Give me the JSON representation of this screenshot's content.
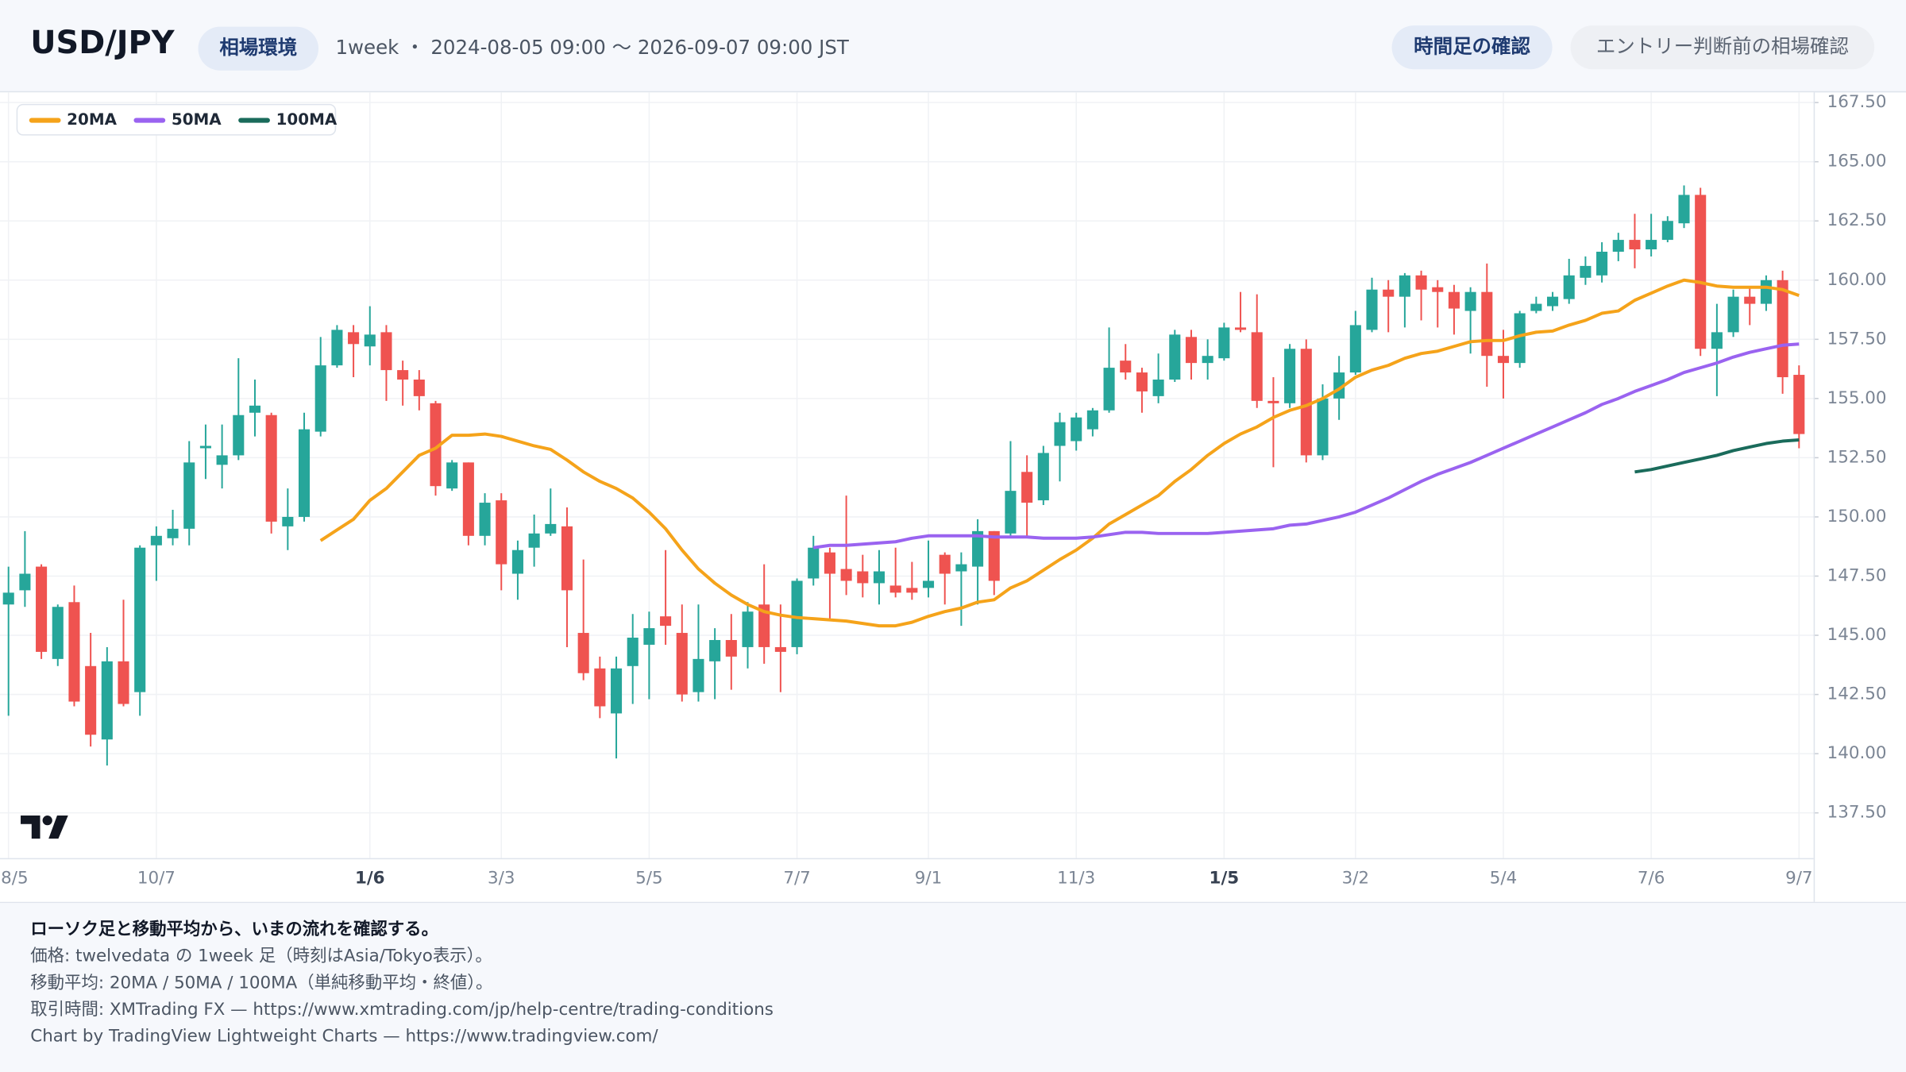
{
  "header": {
    "title": "USD/JPY",
    "tag": "相場環境",
    "subtitle": "1week ・ 2024-08-05 09:00 〜 2026-09-07 09:00 JST",
    "buttons": [
      "時間足の確認",
      "エントリー判断前の相場確認"
    ]
  },
  "chart_data": {
    "type": "candlestick",
    "categories": [
      "8/5",
      null,
      null,
      null,
      null,
      null,
      null,
      null,
      null,
      "10/7",
      null,
      null,
      null,
      null,
      null,
      null,
      null,
      null,
      null,
      null,
      null,
      null,
      "1/6",
      null,
      null,
      null,
      null,
      null,
      null,
      null,
      "3/3",
      null,
      null,
      null,
      null,
      null,
      null,
      null,
      null,
      "5/5",
      null,
      null,
      null,
      null,
      null,
      null,
      null,
      null,
      "7/7",
      null,
      null,
      null,
      null,
      null,
      null,
      null,
      "9/1",
      null,
      null,
      null,
      null,
      null,
      null,
      null,
      null,
      "11/3",
      null,
      null,
      null,
      null,
      null,
      null,
      null,
      null,
      "1/5",
      null,
      null,
      null,
      null,
      null,
      null,
      null,
      "3/2",
      null,
      null,
      null,
      null,
      null,
      null,
      null,
      null,
      "5/4",
      null,
      null,
      null,
      null,
      null,
      null,
      null,
      null,
      "7/6",
      null,
      null,
      null,
      null,
      null,
      null,
      null,
      null,
      "9/7"
    ],
    "open": [
      146.3,
      146.9,
      147.9,
      144.0,
      146.4,
      143.7,
      140.6,
      143.9,
      142.6,
      148.8,
      149.1,
      149.5,
      152.9,
      152.2,
      152.6,
      154.4,
      154.3,
      149.6,
      150.0,
      153.6,
      156.4,
      157.8,
      157.2,
      157.8,
      156.2,
      155.8,
      154.8,
      151.2,
      152.3,
      149.2,
      150.7,
      147.6,
      148.7,
      149.3,
      149.6,
      145.1,
      143.6,
      141.7,
      143.7,
      144.6,
      145.8,
      145.1,
      142.6,
      143.9,
      144.8,
      144.5,
      146.3,
      144.5,
      144.5,
      147.4,
      148.5,
      147.8,
      147.7,
      147.2,
      147.1,
      147.0,
      147.0,
      148.4,
      147.7,
      147.9,
      149.4,
      149.3,
      151.9,
      150.7,
      153.0,
      153.2,
      153.7,
      154.5,
      156.6,
      156.1,
      155.1,
      155.8,
      157.6,
      156.5,
      156.7,
      158.0,
      157.8,
      154.9,
      154.8,
      157.1,
      152.6,
      155.0,
      156.1,
      157.9,
      159.6,
      159.3,
      160.2,
      159.7,
      159.5,
      158.7,
      159.5,
      156.8,
      156.5,
      158.7,
      158.9,
      159.2,
      160.1,
      160.2,
      161.2,
      161.7,
      161.3,
      161.7,
      162.4,
      163.6,
      157.1,
      157.8,
      159.3,
      159.0,
      160.0,
      156.0
    ],
    "high": [
      147.9,
      149.4,
      148.0,
      146.3,
      147.1,
      145.1,
      144.5,
      146.5,
      148.8,
      149.6,
      150.3,
      153.2,
      153.9,
      153.9,
      156.7,
      155.8,
      154.4,
      151.2,
      154.4,
      157.6,
      158.1,
      158.1,
      158.9,
      158.1,
      156.6,
      156.2,
      154.9,
      152.4,
      152.3,
      151.0,
      151.0,
      149.0,
      150.1,
      151.2,
      150.4,
      148.2,
      144.1,
      144.1,
      145.9,
      146.0,
      148.6,
      146.3,
      146.3,
      145.3,
      145.9,
      146.4,
      148.0,
      146.3,
      147.4,
      149.2,
      148.7,
      150.9,
      148.4,
      148.6,
      148.7,
      148.1,
      149.0,
      148.5,
      148.5,
      149.9,
      149.4,
      153.2,
      152.6,
      153.0,
      154.4,
      154.4,
      154.6,
      158.0,
      157.3,
      156.3,
      156.9,
      157.9,
      157.9,
      157.5,
      158.2,
      159.5,
      159.4,
      155.9,
      157.3,
      157.5,
      155.6,
      156.8,
      158.7,
      160.1,
      160.0,
      160.3,
      160.4,
      160.0,
      159.8,
      159.7,
      160.7,
      157.9,
      158.7,
      159.3,
      159.5,
      160.9,
      161.0,
      161.6,
      162.0,
      162.8,
      162.8,
      162.7,
      164.0,
      163.9,
      159.0,
      159.6,
      159.7,
      160.2,
      160.4,
      156.4
    ],
    "low": [
      141.6,
      146.2,
      144.0,
      143.7,
      142.0,
      140.3,
      139.5,
      142.0,
      141.6,
      147.3,
      148.8,
      148.8,
      151.6,
      151.2,
      152.4,
      153.4,
      149.3,
      148.6,
      149.8,
      153.4,
      156.3,
      155.9,
      156.4,
      154.9,
      154.7,
      154.5,
      150.9,
      151.1,
      148.8,
      148.8,
      146.9,
      146.5,
      147.9,
      149.2,
      144.5,
      143.1,
      141.5,
      139.8,
      142.1,
      142.3,
      144.6,
      142.2,
      142.2,
      142.3,
      142.7,
      143.6,
      143.8,
      142.6,
      144.2,
      147.1,
      145.6,
      146.7,
      146.6,
      146.3,
      146.6,
      146.5,
      146.6,
      146.3,
      145.4,
      146.3,
      146.7,
      149.1,
      149.2,
      150.5,
      151.5,
      152.8,
      153.4,
      154.4,
      155.8,
      154.4,
      154.8,
      155.7,
      155.8,
      155.8,
      156.6,
      157.8,
      154.6,
      152.1,
      154.6,
      152.3,
      152.4,
      154.1,
      156.0,
      157.8,
      157.8,
      158.0,
      158.3,
      158.0,
      157.7,
      156.9,
      155.5,
      155.0,
      156.3,
      158.6,
      158.7,
      159.0,
      159.8,
      159.9,
      160.8,
      160.5,
      161.0,
      161.6,
      162.2,
      156.8,
      155.1,
      157.6,
      158.1,
      158.7,
      155.2,
      152.9
    ],
    "close": [
      146.8,
      147.6,
      144.3,
      146.2,
      142.2,
      140.8,
      143.9,
      142.1,
      148.7,
      149.2,
      149.5,
      152.3,
      153.0,
      152.6,
      154.3,
      154.7,
      149.8,
      150.0,
      153.7,
      156.4,
      157.9,
      157.3,
      157.7,
      156.2,
      155.8,
      155.1,
      151.3,
      152.3,
      149.2,
      150.6,
      148.0,
      148.6,
      149.3,
      149.7,
      146.9,
      143.4,
      142.0,
      143.6,
      144.9,
      145.3,
      145.4,
      142.5,
      144.0,
      144.8,
      144.1,
      146.0,
      144.5,
      144.3,
      147.3,
      148.7,
      147.6,
      147.3,
      147.2,
      147.7,
      146.8,
      146.8,
      147.3,
      147.6,
      148.0,
      149.4,
      147.3,
      151.1,
      150.6,
      152.7,
      154.0,
      154.2,
      154.5,
      156.3,
      156.1,
      155.3,
      155.8,
      157.7,
      156.5,
      156.8,
      158.0,
      157.9,
      154.9,
      154.8,
      157.1,
      152.6,
      155.0,
      156.1,
      158.1,
      159.6,
      159.3,
      160.2,
      159.6,
      159.5,
      158.8,
      159.5,
      156.8,
      156.5,
      158.6,
      159.0,
      159.3,
      160.2,
      160.6,
      161.2,
      161.7,
      161.3,
      161.7,
      162.5,
      163.6,
      157.1,
      157.8,
      159.3,
      159.0,
      160.0,
      155.9,
      153.5
    ],
    "up_color": "#26a69a",
    "down_color": "#ef5350",
    "series": [
      {
        "name": "20MA",
        "color": "#f5a31a",
        "values": [
          null,
          null,
          null,
          null,
          null,
          null,
          null,
          null,
          null,
          null,
          null,
          null,
          null,
          null,
          null,
          null,
          null,
          null,
          null,
          149.0,
          149.45,
          149.9,
          150.7,
          151.2,
          151.9,
          152.6,
          152.9,
          153.45,
          153.45,
          153.5,
          153.4,
          153.2,
          153.0,
          152.85,
          152.4,
          151.9,
          151.5,
          151.2,
          150.8,
          150.2,
          149.5,
          148.6,
          147.8,
          147.2,
          146.7,
          146.3,
          146.0,
          145.85,
          145.75,
          145.7,
          145.65,
          145.6,
          145.5,
          145.4,
          145.4,
          145.55,
          145.8,
          146.0,
          146.15,
          146.4,
          146.5,
          147.0,
          147.3,
          147.75,
          148.2,
          148.6,
          149.1,
          149.7,
          150.1,
          150.5,
          150.9,
          151.5,
          152.0,
          152.6,
          153.1,
          153.5,
          153.8,
          154.2,
          154.5,
          154.7,
          155.0,
          155.4,
          155.9,
          156.2,
          156.4,
          156.7,
          156.9,
          157.0,
          157.2,
          157.4,
          157.45,
          157.45,
          157.65,
          157.8,
          157.85,
          158.1,
          158.3,
          158.6,
          158.7,
          159.15,
          159.45,
          159.75,
          160.0,
          159.9,
          159.75,
          159.7,
          159.7,
          159.7,
          159.6,
          159.35
        ]
      },
      {
        "name": "50MA",
        "color": "#9a63f0",
        "values": [
          null,
          null,
          null,
          null,
          null,
          null,
          null,
          null,
          null,
          null,
          null,
          null,
          null,
          null,
          null,
          null,
          null,
          null,
          null,
          null,
          null,
          null,
          null,
          null,
          null,
          null,
          null,
          null,
          null,
          null,
          null,
          null,
          null,
          null,
          null,
          null,
          null,
          null,
          null,
          null,
          null,
          null,
          null,
          null,
          null,
          null,
          null,
          null,
          null,
          148.7,
          148.8,
          148.8,
          148.85,
          148.9,
          148.95,
          149.1,
          149.2,
          149.2,
          149.2,
          149.2,
          149.15,
          149.15,
          149.15,
          149.1,
          149.1,
          149.1,
          149.15,
          149.25,
          149.35,
          149.35,
          149.3,
          149.3,
          149.3,
          149.3,
          149.35,
          149.4,
          149.45,
          149.5,
          149.65,
          149.7,
          149.85,
          150.0,
          150.2,
          150.5,
          150.8,
          151.15,
          151.5,
          151.8,
          152.05,
          152.3,
          152.6,
          152.9,
          153.2,
          153.5,
          153.8,
          154.1,
          154.4,
          154.75,
          155.0,
          155.3,
          155.55,
          155.8,
          156.1,
          156.3,
          156.5,
          156.75,
          156.95,
          157.1,
          157.25,
          157.3
        ]
      },
      {
        "name": "100MA",
        "color": "#1a6b5b",
        "values": [
          null,
          null,
          null,
          null,
          null,
          null,
          null,
          null,
          null,
          null,
          null,
          null,
          null,
          null,
          null,
          null,
          null,
          null,
          null,
          null,
          null,
          null,
          null,
          null,
          null,
          null,
          null,
          null,
          null,
          null,
          null,
          null,
          null,
          null,
          null,
          null,
          null,
          null,
          null,
          null,
          null,
          null,
          null,
          null,
          null,
          null,
          null,
          null,
          null,
          null,
          null,
          null,
          null,
          null,
          null,
          null,
          null,
          null,
          null,
          null,
          null,
          null,
          null,
          null,
          null,
          null,
          null,
          null,
          null,
          null,
          null,
          null,
          null,
          null,
          null,
          null,
          null,
          null,
          null,
          null,
          null,
          null,
          null,
          null,
          null,
          null,
          null,
          null,
          null,
          null,
          null,
          null,
          null,
          null,
          null,
          null,
          null,
          null,
          null,
          151.9,
          152.0,
          152.15,
          152.3,
          152.45,
          152.6,
          152.8,
          152.95,
          153.1,
          153.2,
          153.25
        ]
      }
    ],
    "ylim": [
      135.59,
      167.93
    ],
    "yticks": [
      {
        "value": 137.5,
        "label": "137.50"
      },
      {
        "value": 140,
        "label": "140.00"
      },
      {
        "value": 142.5,
        "label": "142.50"
      },
      {
        "value": 145,
        "label": "145.00"
      },
      {
        "value": 147.5,
        "label": "147.50"
      },
      {
        "value": 150,
        "label": "150.00"
      },
      {
        "value": 152.5,
        "label": "152.50"
      },
      {
        "value": 155,
        "label": "155.00"
      },
      {
        "value": 157.5,
        "label": "157.50"
      },
      {
        "value": 160,
        "label": "160.00"
      },
      {
        "value": 162.5,
        "label": "162.50"
      },
      {
        "value": 165,
        "label": "165.00"
      },
      {
        "value": 167.5,
        "label": "167.50"
      }
    ],
    "grid": true,
    "legend": "top-left"
  },
  "footer": {
    "title": "ローソク足と移動平均から、いまの流れを確認する。",
    "lines": [
      "価格: twelvedata の 1week 足（時刻はAsia/Tokyo表示）。",
      "移動平均: 20MA / 50MA / 100MA（単純移動平均・終値）。",
      "取引時間: XMTrading FX — https://www.xmtrading.com/jp/help-centre/trading-conditions",
      "Chart by TradingView Lightweight Charts — https://www.tradingview.com/"
    ]
  }
}
